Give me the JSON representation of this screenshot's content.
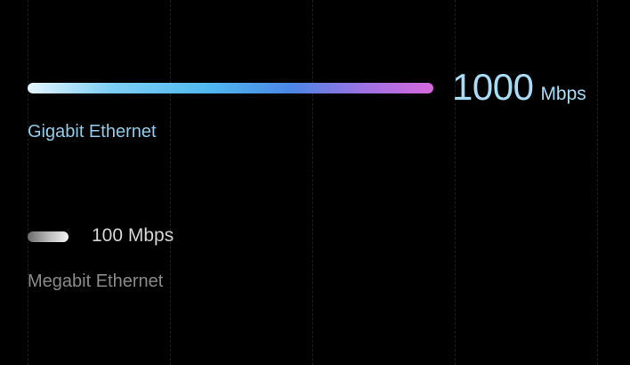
{
  "chart_data": {
    "type": "bar",
    "orientation": "horizontal",
    "unit": "Mbps",
    "xlim": [
      0,
      1000
    ],
    "grid": true,
    "series": [
      {
        "name": "Gigabit Ethernet",
        "value": 1000,
        "value_text": "1000",
        "unit_text": "Mbps",
        "color_start": "#e6f6ff",
        "color_end": "#d569dc",
        "label_color": "#8fcbea"
      },
      {
        "name": "Megabit Ethernet",
        "value": 100,
        "value_text": "100 Mbps",
        "color_start": "#6a6a6a",
        "color_end": "#f2f2f2",
        "label_color": "#8a8a8a"
      }
    ]
  }
}
